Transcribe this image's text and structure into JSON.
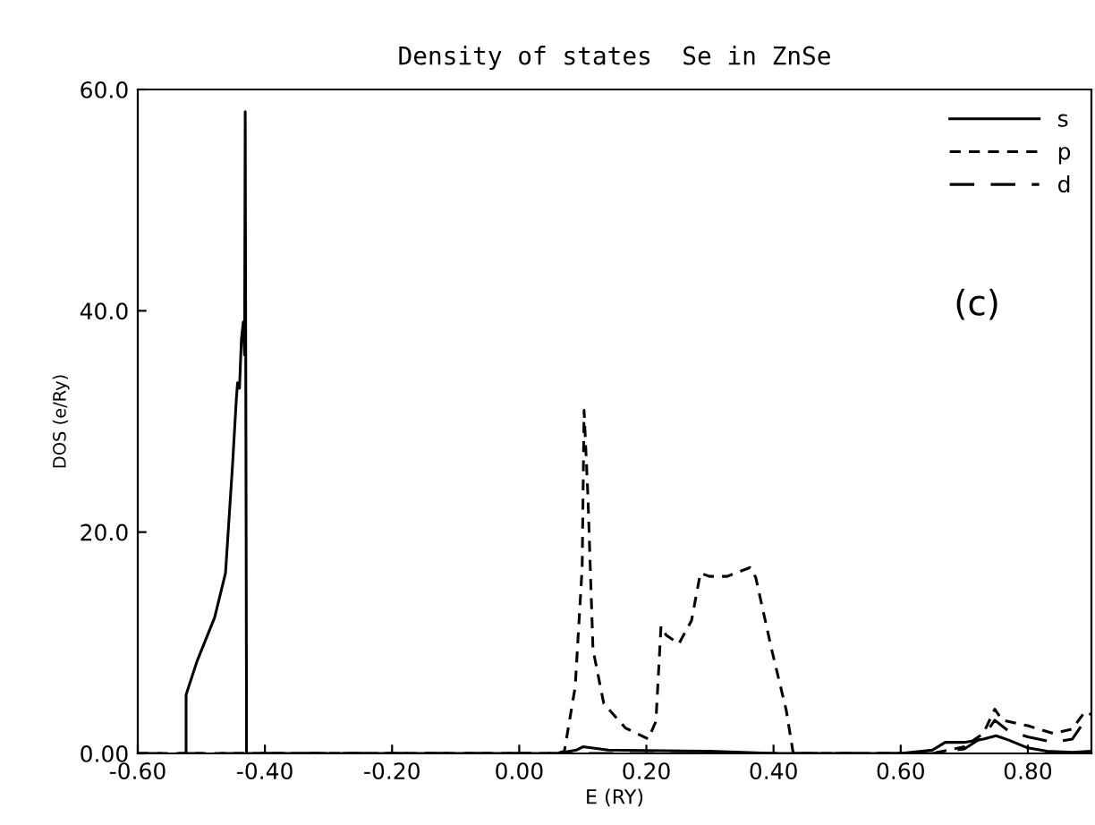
{
  "chart_data": {
    "type": "line",
    "title": "Density of states  Se in ZnSe",
    "xlabel": "E (RY)",
    "ylabel": "DOS (e/Ry)",
    "annotations": [
      "(c)"
    ],
    "xlim": [
      -0.6,
      0.9
    ],
    "ylim": [
      0,
      60
    ],
    "xticks": [
      {
        "value": -0.6,
        "label": "-0.60"
      },
      {
        "value": -0.4,
        "label": "-0.40"
      },
      {
        "value": -0.2,
        "label": "-0.20"
      },
      {
        "value": 0,
        "label": "0.00"
      },
      {
        "value": 0.2,
        "label": "0.20"
      },
      {
        "value": 0.4,
        "label": "0.40"
      },
      {
        "value": 0.6,
        "label": "0.60"
      },
      {
        "value": 0.8,
        "label": "0.80"
      }
    ],
    "yticks": [
      {
        "value": 0,
        "label": "0.00"
      },
      {
        "value": 20,
        "label": "20.0"
      },
      {
        "value": 40,
        "label": "40.0"
      },
      {
        "value": 60,
        "label": "60.0"
      }
    ],
    "grid": false,
    "legend": "top right",
    "series": [
      {
        "name": "s",
        "color": "#000000",
        "line_style": "solid",
        "x": [
          -0.524,
          -0.524,
          -0.507,
          -0.479,
          -0.462,
          -0.451,
          -0.445,
          -0.443,
          -0.44,
          -0.437,
          -0.434,
          -0.432,
          -0.431,
          -0.429,
          -0.429,
          0.06,
          0.09,
          0.1,
          0.14,
          0.3,
          0.4,
          0.6,
          0.65,
          0.67,
          0.7,
          0.73,
          0.75,
          0.77,
          0.8,
          0.83,
          0.87,
          0.9
        ],
        "values": [
          0,
          5.3,
          8.3,
          12.3,
          16.3,
          26,
          32,
          33.5,
          33,
          37.4,
          39,
          36,
          58,
          5,
          0,
          0,
          0.3,
          0.6,
          0.3,
          0.2,
          0,
          0,
          0.3,
          1,
          1,
          1.3,
          1.6,
          1.2,
          0.5,
          0.2,
          0.1,
          0.2
        ]
      },
      {
        "name": "p",
        "color": "#000000",
        "line_style": "dashed",
        "x": [
          -0.6,
          0.06,
          0.071,
          0.088,
          0.099,
          0.102,
          0.108,
          0.116,
          0.133,
          0.167,
          0.203,
          0.215,
          0.223,
          0.231,
          0.251,
          0.271,
          0.285,
          0.299,
          0.327,
          0.363,
          0.372,
          0.397,
          0.42,
          0.431,
          0.65,
          0.7,
          0.73,
          0.748,
          0.76,
          0.8,
          0.84,
          0.87,
          0.89,
          0.9
        ],
        "values": [
          0,
          0,
          0.2,
          6,
          16.8,
          31,
          23.3,
          9.4,
          4.5,
          2.3,
          1.3,
          2.9,
          11.5,
          10.7,
          9.9,
          12,
          16.3,
          16,
          16,
          16.8,
          15.9,
          9.4,
          3.9,
          0,
          0,
          0.6,
          1.8,
          4,
          3,
          2.5,
          1.8,
          2.2,
          3.8,
          3.5
        ]
      },
      {
        "name": "d",
        "color": "#000000",
        "line_style": "dashed_long",
        "x": [
          -0.6,
          0.65,
          0.7,
          0.73,
          0.748,
          0.77,
          0.8,
          0.84,
          0.87,
          0.89,
          0.9
        ],
        "values": [
          0,
          0,
          0.4,
          1.5,
          3,
          2,
          1.5,
          1,
          1.3,
          3,
          2.5
        ]
      }
    ]
  }
}
